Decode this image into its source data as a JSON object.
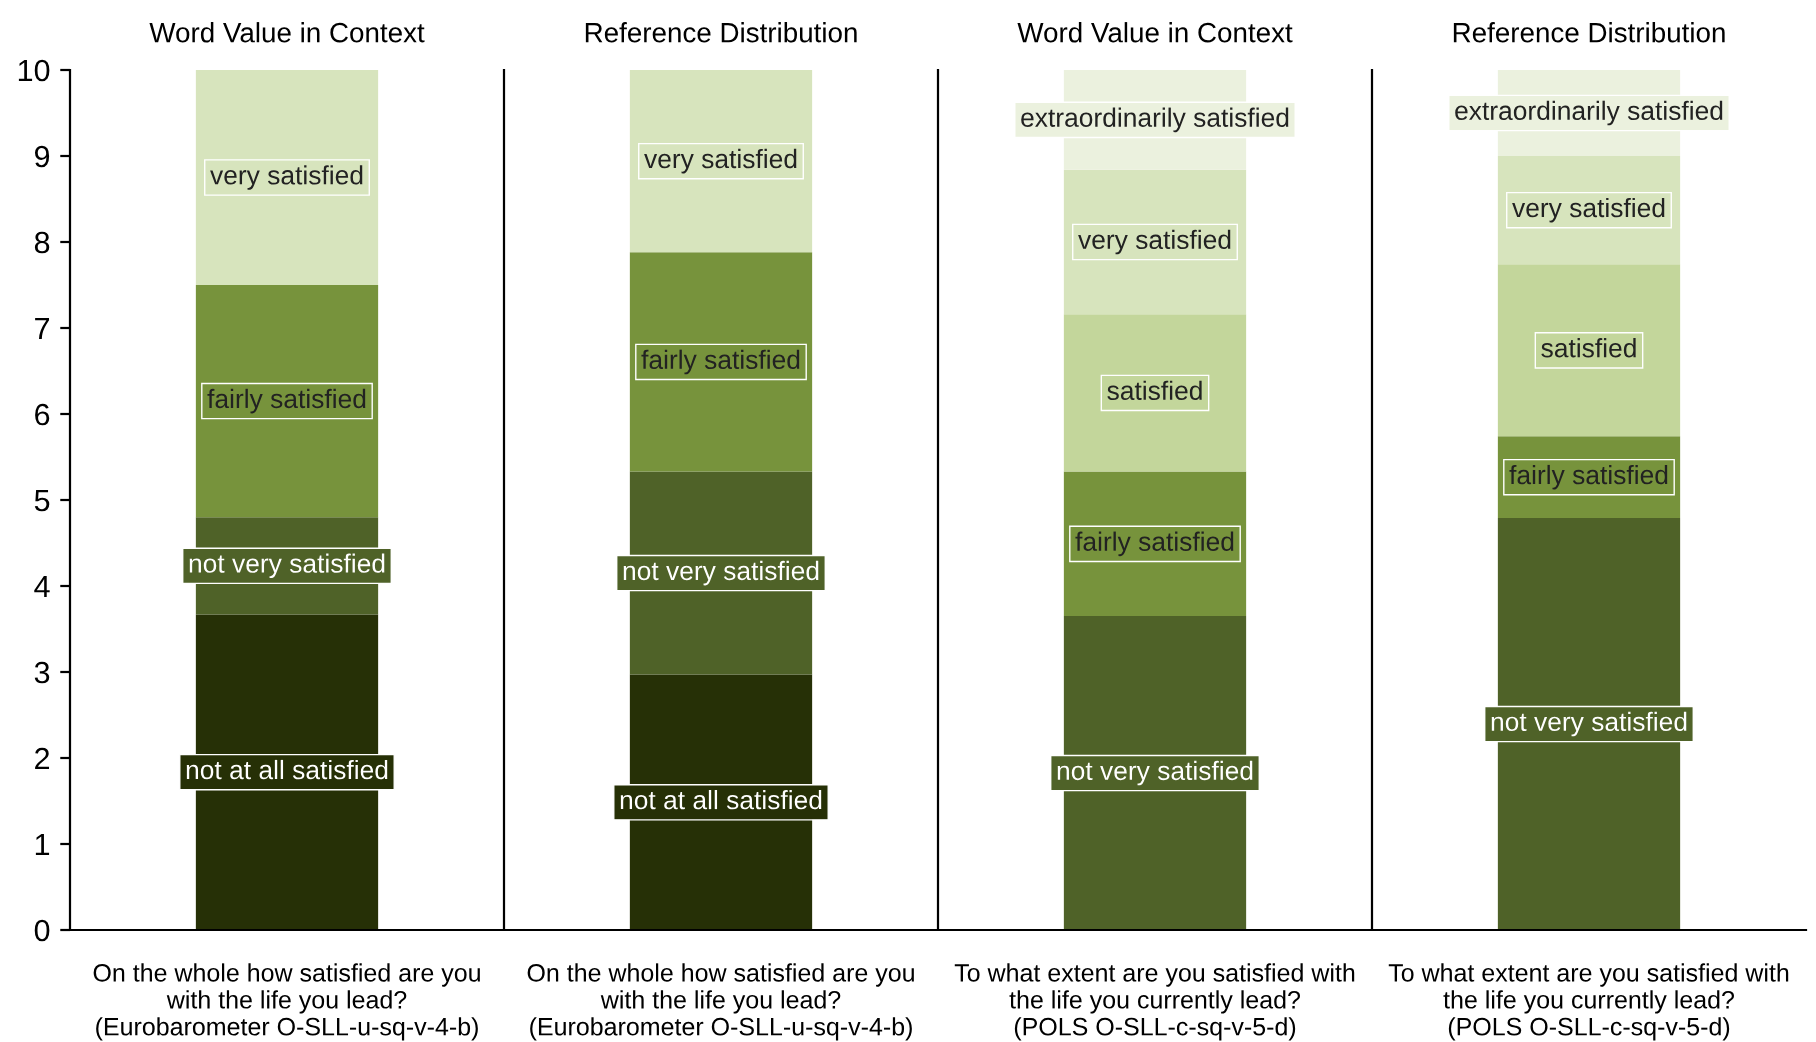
{
  "chart_data": [
    {
      "type": "bar",
      "stacked": true,
      "title": "Word Value in Context",
      "categories": [
        "On the whole how satisfied are you\nwith the life you lead?\n(Eurobarometer O-SLL-u-sq-v-4-b)"
      ],
      "ylim": [
        0,
        10
      ],
      "yticks": [
        0,
        1,
        2,
        3,
        4,
        5,
        6,
        7,
        8,
        9,
        10
      ],
      "grid": false,
      "legend": false,
      "series": [
        {
          "name": "not at all satisfied",
          "color": "#263006",
          "values": [
            3.67
          ]
        },
        {
          "name": "not very satisfied",
          "color": "#4f6228",
          "values": [
            1.13
          ]
        },
        {
          "name": "fairly satisfied",
          "color": "#77933c",
          "values": [
            2.7
          ]
        },
        {
          "name": "very satisfied",
          "color": "#d7e4bd",
          "values": [
            2.5
          ]
        }
      ]
    },
    {
      "type": "bar",
      "stacked": true,
      "title": "Reference Distribution",
      "categories": [
        "On the whole how satisfied are you\nwith the life you lead?\n(Eurobarometer O-SLL-u-sq-v-4-b)"
      ],
      "ylim": [
        0,
        10
      ],
      "yticks": [
        0,
        1,
        2,
        3,
        4,
        5,
        6,
        7,
        8,
        9,
        10
      ],
      "tick_labels": "x",
      "grid": false,
      "legend": false,
      "series": [
        {
          "name": "not at all satisfied",
          "color": "#263006",
          "values": [
            2.97
          ]
        },
        {
          "name": "not very satisfied",
          "color": "#4f6228",
          "values": [
            2.36
          ]
        },
        {
          "name": "fairly satisfied",
          "color": "#77933c",
          "values": [
            2.55
          ]
        },
        {
          "name": "very satisfied",
          "color": "#d7e4bd",
          "values": [
            2.12
          ]
        }
      ]
    },
    {
      "type": "bar",
      "stacked": true,
      "title": "Word Value in Context",
      "categories": [
        "To what extent are you satisfied with\nthe life you currently lead?\n(POLS O-SLL-c-sq-v-5-d)"
      ],
      "ylim": [
        0,
        10
      ],
      "yticks": [
        0,
        1,
        2,
        3,
        4,
        5,
        6,
        7,
        8,
        9,
        10
      ],
      "tick_labels": "x",
      "grid": false,
      "legend": false,
      "series": [
        {
          "name": "not very satisfied",
          "color": "#4f6228",
          "values": [
            3.65
          ]
        },
        {
          "name": "fairly satisfied",
          "color": "#77933c",
          "values": [
            1.68
          ]
        },
        {
          "name": "satisfied",
          "color": "#c3d69b",
          "values": [
            1.83
          ]
        },
        {
          "name": "very satisfied",
          "color": "#d7e4bd",
          "values": [
            1.68
          ]
        },
        {
          "name": "extraordinarily satisfied",
          "color": "#ebf1de",
          "values": [
            1.16
          ]
        }
      ]
    },
    {
      "type": "bar",
      "stacked": true,
      "title": "Reference Distribution",
      "categories": [
        "To what extent are you satisfied with\nthe life you currently lead?\n(POLS O-SLL-c-sq-v-5-d)"
      ],
      "ylim": [
        0,
        10
      ],
      "yticks": [
        0,
        1,
        2,
        3,
        4,
        5,
        6,
        7,
        8,
        9,
        10
      ],
      "tick_labels": "x",
      "grid": false,
      "legend": false,
      "series": [
        {
          "name": "not very satisfied",
          "color": "#4f6228",
          "values": [
            4.79
          ]
        },
        {
          "name": "fairly satisfied",
          "color": "#77933c",
          "values": [
            0.95
          ]
        },
        {
          "name": "satisfied",
          "color": "#c3d69b",
          "values": [
            2.0
          ]
        },
        {
          "name": "very satisfied",
          "color": "#d7e4bd",
          "values": [
            1.26
          ]
        },
        {
          "name": "extraordinarily satisfied",
          "color": "#ebf1de",
          "values": [
            1.0
          ]
        }
      ]
    }
  ]
}
